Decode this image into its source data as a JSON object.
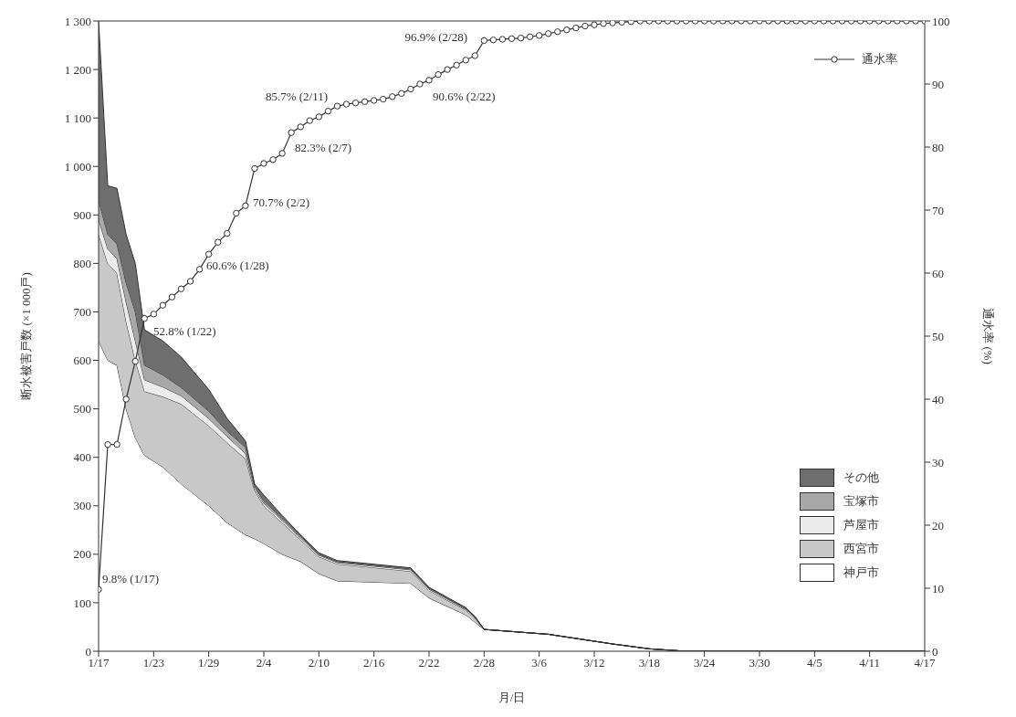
{
  "chart_data": {
    "type": "area",
    "stacked": true,
    "xlabel": "月/日",
    "ylabel": "断水被害戸数 (×1 000戸)",
    "y2label": "通水率 (%)",
    "x": [
      "--01-17",
      "--01-18",
      "--01-19",
      "--01-20",
      "--01-21",
      "--01-22",
      "--01-24",
      "--01-26",
      "--01-29",
      "--01-31",
      "--02-02",
      "--02-03",
      "--02-04",
      "--02-06",
      "--02-08",
      "--02-10",
      "--02-12",
      "--02-20",
      "--02-22",
      "--02-26",
      "--02-27",
      "--02-28",
      "--03-07",
      "--03-14",
      "--03-18",
      "--03-22",
      "--04-17"
    ],
    "series": [
      {
        "name": "神戸市",
        "color": "#ffffff",
        "values": [
          640,
          600,
          590,
          500,
          440,
          404,
          380,
          345,
          300,
          265,
          240,
          232,
          222,
          200,
          185,
          160,
          145,
          140,
          110,
          75,
          60,
          45,
          35,
          15,
          5,
          0,
          0
        ]
      },
      {
        "name": "西宮市",
        "color": "#c8c8c8",
        "values": [
          220,
          200,
          190,
          180,
          160,
          132,
          145,
          165,
          165,
          165,
          157,
          100,
          78,
          65,
          45,
          35,
          35,
          25,
          15,
          10,
          8,
          0,
          0,
          0,
          0,
          0,
          0
        ]
      },
      {
        "name": "芦屋市",
        "color": "#ececec",
        "values": [
          30,
          30,
          30,
          40,
          40,
          24,
          20,
          17,
          15,
          13,
          11,
          5,
          5,
          5,
          4,
          3,
          3,
          3,
          3,
          2,
          2,
          0,
          0,
          0,
          0,
          0,
          0
        ]
      },
      {
        "name": "宝塚市",
        "color": "#a8a8a8",
        "values": [
          40,
          30,
          30,
          40,
          60,
          30,
          25,
          17,
          15,
          11,
          13,
          4,
          5,
          4,
          3,
          2,
          2,
          2,
          2,
          1,
          1,
          0,
          0,
          0,
          0,
          0,
          0
        ]
      },
      {
        "name": "その他",
        "color": "#6e6e6e",
        "values": [
          370,
          100,
          115,
          100,
          100,
          73,
          70,
          63,
          45,
          26,
          13,
          4,
          12,
          6,
          3,
          3,
          2,
          2,
          2,
          2,
          1,
          0,
          0,
          0,
          0,
          0,
          0
        ]
      },
      {
        "name": "通水率",
        "type": "line",
        "axis": "y2",
        "color": "#333333",
        "marker": "circle",
        "x": [
          "--01-17",
          "--01-18",
          "--01-19",
          "--01-20",
          "--01-21",
          "--01-22",
          "--01-23",
          "--01-24",
          "--01-25",
          "--01-26",
          "--01-27",
          "--01-28",
          "--01-29",
          "--01-30",
          "--01-31",
          "--02-01",
          "--02-02",
          "--02-03",
          "--02-04",
          "--02-05",
          "--02-06",
          "--02-07",
          "--02-08",
          "--02-09",
          "--02-10",
          "--02-11",
          "--02-12",
          "--02-13",
          "--02-14",
          "--02-15",
          "--02-16",
          "--02-17",
          "--02-18",
          "--02-19",
          "--02-20",
          "--02-21",
          "--02-22",
          "--02-23",
          "--02-24",
          "--02-25",
          "--02-26",
          "--02-27",
          "--02-28",
          "--03-01",
          "--03-02",
          "--03-03",
          "--03-04",
          "--03-05",
          "--03-06",
          "--03-07",
          "--03-08",
          "--03-09",
          "--03-10",
          "--03-11",
          "--03-12",
          "--03-13",
          "--03-14",
          "--03-15",
          "--03-16",
          "--03-17",
          "--03-18",
          "--03-19",
          "--03-20",
          "--03-21",
          "--03-22",
          "--03-23",
          "--03-24",
          "--03-25",
          "--03-26",
          "--03-27",
          "--03-28",
          "--03-29",
          "--03-30",
          "--03-31",
          "--04-01",
          "--04-02",
          "--04-03",
          "--04-04",
          "--04-05",
          "--04-06",
          "--04-07",
          "--04-08",
          "--04-09",
          "--04-10",
          "--04-11",
          "--04-12",
          "--04-13",
          "--04-14",
          "--04-15",
          "--04-16",
          "--04-17"
        ],
        "values": [
          9.8,
          32.8,
          32.8,
          40,
          46,
          52.8,
          53.5,
          54.9,
          56.2,
          57.5,
          58.7,
          60.6,
          63,
          64.9,
          66.3,
          69.5,
          70.7,
          76.6,
          77.4,
          78,
          79,
          82.3,
          83.2,
          84.2,
          84.8,
          85.7,
          86.5,
          86.8,
          87,
          87.2,
          87.4,
          87.6,
          88,
          88.5,
          89.2,
          90,
          90.6,
          91.5,
          92.3,
          93,
          93.8,
          94.5,
          96.9,
          97,
          97.1,
          97.2,
          97.3,
          97.5,
          97.7,
          98,
          98.3,
          98.6,
          98.9,
          99.2,
          99.4,
          99.6,
          99.7,
          99.8,
          99.9,
          100,
          100,
          100,
          100,
          100,
          100,
          100,
          100,
          100,
          100,
          100,
          100,
          100,
          100,
          100,
          100,
          100,
          100,
          100,
          100,
          100,
          100,
          100,
          100,
          100,
          100,
          100,
          100,
          100,
          100,
          100,
          100
        ]
      }
    ],
    "xlim": [
      "--01-17",
      "--04-17"
    ],
    "xticks": [
      {
        "value": "--01-17",
        "label": "1/17"
      },
      {
        "value": "--01-23",
        "label": "1/23"
      },
      {
        "value": "--01-29",
        "label": "1/29"
      },
      {
        "value": "--02-04",
        "label": "2/4"
      },
      {
        "value": "--02-10",
        "label": "2/10"
      },
      {
        "value": "--02-16",
        "label": "2/16"
      },
      {
        "value": "--02-22",
        "label": "2/22"
      },
      {
        "value": "--02-28",
        "label": "2/28"
      },
      {
        "value": "--03-06",
        "label": "3/6"
      },
      {
        "value": "--03-12",
        "label": "3/12"
      },
      {
        "value": "--03-18",
        "label": "3/18"
      },
      {
        "value": "--03-24",
        "label": "3/24"
      },
      {
        "value": "--03-30",
        "label": "3/30"
      },
      {
        "value": "--04-05",
        "label": "4/5"
      },
      {
        "value": "--04-11",
        "label": "4/11"
      },
      {
        "value": "--04-17",
        "label": "4/17"
      }
    ],
    "ylim": [
      0,
      1300
    ],
    "yticks": [
      0,
      100,
      200,
      300,
      400,
      500,
      600,
      700,
      800,
      900,
      {
        "value": 1000,
        "label": "1 000"
      },
      {
        "value": 1100,
        "label": "1 100"
      },
      {
        "value": 1200,
        "label": "1 200"
      },
      {
        "value": 1300,
        "label": "1 300"
      }
    ],
    "y2lim": [
      0,
      100
    ],
    "y2ticks": [
      0,
      10,
      20,
      30,
      40,
      50,
      60,
      70,
      80,
      90,
      100
    ],
    "legend": "right",
    "annotations": [
      "9.8% (1/17)",
      "52.8% (1/22)",
      "60.6% (1/28)",
      "70.7% (2/2)",
      "82.3% (2/7)",
      "85.7% (2/11)",
      "90.6% (2/22)",
      "96.9% (2/28)"
    ]
  }
}
